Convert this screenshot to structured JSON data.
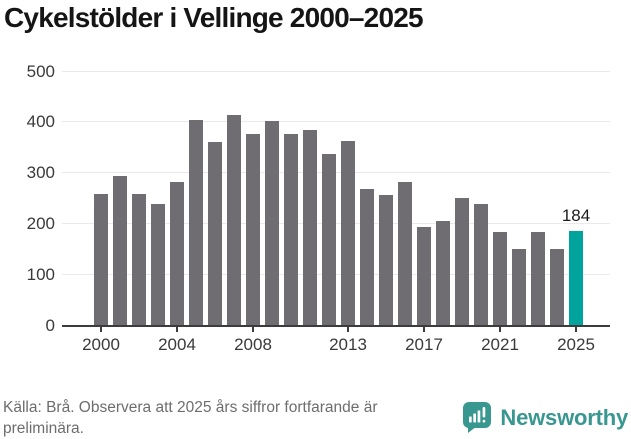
{
  "title": "Cykelstölder i Vellinge 2000–2025",
  "footer": {
    "source_note": "Källa: Brå. Observera att 2025 års siffror fortfarande är preliminära.",
    "brand": "Newsworthy"
  },
  "colors": {
    "bar": "#6f6d72",
    "highlight": "#00a49c",
    "gridline": "#eaeaea",
    "axis": "#3c3c3c",
    "tick_text": "#3a3a3a",
    "title_text": "#151515",
    "annotation_text": "#1c1c1c",
    "footer_text": "#6d6d6d",
    "brand": "#38978e"
  },
  "chart_data": {
    "type": "bar",
    "title": "Cykelstölder i Vellinge 2000–2025",
    "x": [
      2000,
      2001,
      2002,
      2003,
      2004,
      2005,
      2006,
      2007,
      2008,
      2009,
      2010,
      2011,
      2012,
      2013,
      2014,
      2015,
      2016,
      2017,
      2018,
      2019,
      2020,
      2021,
      2022,
      2023,
      2024,
      2025
    ],
    "values": [
      257,
      293,
      257,
      238,
      281,
      403,
      359,
      412,
      375,
      400,
      375,
      384,
      335,
      362,
      268,
      256,
      280,
      192,
      204,
      250,
      237,
      182,
      149,
      182,
      150,
      184
    ],
    "xlabel": "",
    "ylabel": "",
    "ylim": [
      0,
      500
    ],
    "y_ticks": [
      0,
      100,
      200,
      300,
      400,
      500
    ],
    "x_tick_labels": [
      "2000",
      "2004",
      "2008",
      "2013",
      "2017",
      "2021",
      "2025"
    ],
    "grid": "horizontal",
    "legend": "none",
    "highlight": {
      "year": 2025,
      "value": 184,
      "label": "184"
    }
  }
}
